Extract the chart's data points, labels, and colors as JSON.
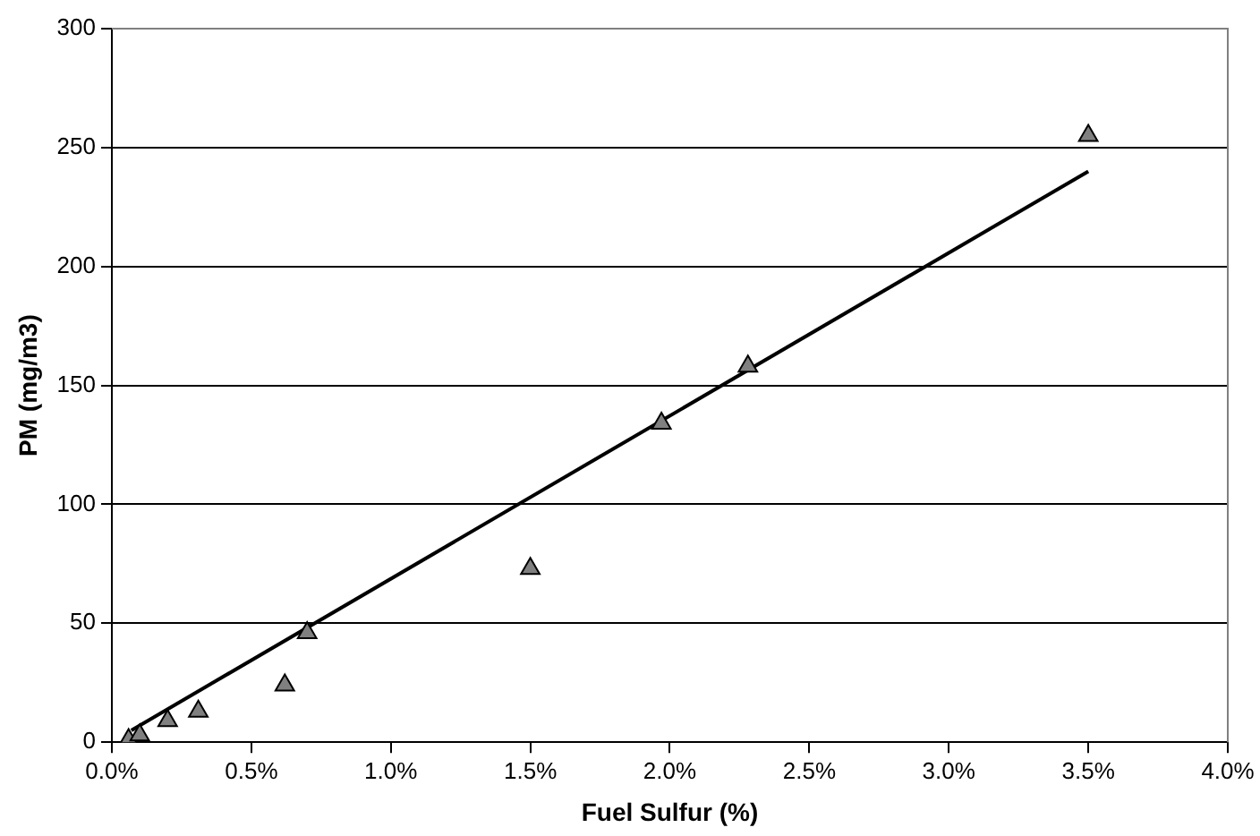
{
  "chart_data": {
    "type": "scatter",
    "xlabel": "Fuel Sulfur (%)",
    "ylabel": "PM (mg/m3)",
    "xlim": [
      0,
      4
    ],
    "xticks": [
      {
        "value": 0,
        "label": "0.0%"
      },
      {
        "value": 0.5,
        "label": "0.5%"
      },
      {
        "value": 1,
        "label": "1.0%"
      },
      {
        "value": 1.5,
        "label": "1.5%"
      },
      {
        "value": 2,
        "label": "2.0%"
      },
      {
        "value": 2.5,
        "label": "2.5%"
      },
      {
        "value": 3,
        "label": "3.0%"
      },
      {
        "value": 3.5,
        "label": "3.5%"
      },
      {
        "value": 4,
        "label": "4.0%"
      }
    ],
    "ylim": [
      0,
      300
    ],
    "yticks": [
      0,
      50,
      100,
      150,
      200,
      250,
      300
    ],
    "grid": "y",
    "legend": false,
    "marker": "triangle",
    "series": [
      {
        "color": "#808080",
        "x": [
          0.06,
          0.1,
          0.2,
          0.31,
          0.62,
          0.7,
          1.5,
          1.97,
          2.28,
          3.5
        ],
        "values": [
          1,
          3,
          9,
          13,
          24,
          46,
          73,
          134,
          158,
          255
        ]
      },
      {
        "type": "line",
        "color": "#000000",
        "marker": "none",
        "x": [
          0.07,
          3.5
        ],
        "values": [
          5,
          240
        ]
      }
    ]
  }
}
